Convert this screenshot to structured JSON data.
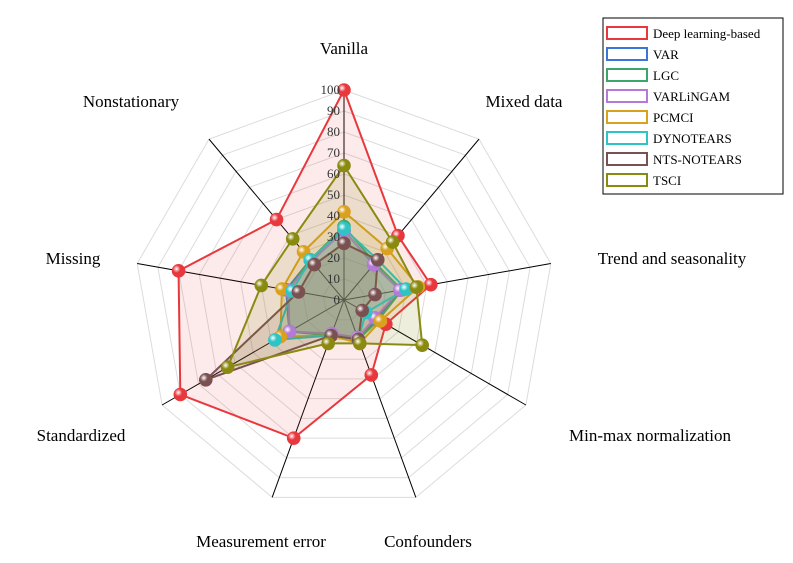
{
  "chart_data": {
    "type": "radar",
    "axes": [
      "Vanilla",
      "Mixed data",
      "Trend and seasonality",
      "Min-max normalization",
      "Confounders",
      "Measurement error",
      "Standardized",
      "Missing",
      "Nonstationary"
    ],
    "r_range": [
      0,
      100
    ],
    "r_ticks": [
      0,
      10,
      20,
      30,
      40,
      50,
      60,
      70,
      80,
      90,
      100
    ],
    "grid": true,
    "legend_position": "top-right",
    "series": [
      {
        "name": "Deep learning-based",
        "color": "#e8383d",
        "fill": true,
        "values": [
          100,
          40,
          42,
          23,
          38,
          70,
          90,
          80,
          50
        ]
      },
      {
        "name": "VAR",
        "color": "#3a76d8",
        "fill": false,
        "values": [
          33,
          22,
          27,
          18,
          20,
          18,
          30,
          28,
          25
        ]
      },
      {
        "name": "LGC",
        "color": "#3aa66a",
        "fill": false,
        "values": [
          35,
          23,
          28,
          19,
          20,
          18,
          30,
          27,
          25
        ]
      },
      {
        "name": "VARLiNGAM",
        "color": "#b57ad8",
        "fill": false,
        "values": [
          33,
          22,
          27,
          17,
          19,
          17,
          30,
          27,
          24
        ]
      },
      {
        "name": "PCMCI",
        "color": "#d9a11e",
        "fill": false,
        "values": [
          42,
          32,
          36,
          20,
          22,
          18,
          35,
          30,
          30
        ]
      },
      {
        "name": "DYNOTEARS",
        "color": "#2fc4c4",
        "fill": false,
        "values": [
          34,
          25,
          30,
          12,
          20,
          18,
          38,
          25,
          25
        ]
      },
      {
        "name": "NTS-NOTEARS",
        "color": "#7a5050",
        "fill": false,
        "values": [
          27,
          25,
          15,
          10,
          20,
          18,
          76,
          22,
          22
        ]
      },
      {
        "name": "TSCI",
        "color": "#8a8a10",
        "fill": false,
        "values": [
          64,
          36,
          35,
          43,
          22,
          22,
          64,
          40,
          38
        ]
      }
    ]
  }
}
